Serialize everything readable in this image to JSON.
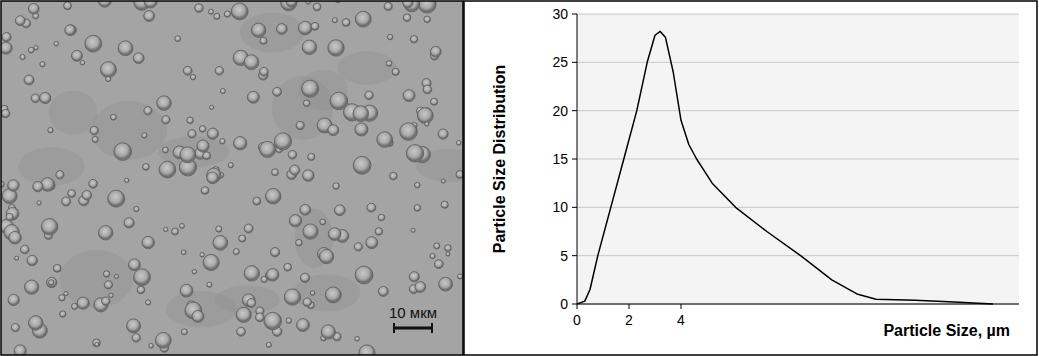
{
  "image_panel": {
    "scale_bar_label": "10 мкм"
  },
  "chart_data": {
    "type": "line",
    "y_label": "Particle Size Distribution",
    "x_label": "Particle Size, µm",
    "x": [
      0,
      0.3,
      0.5,
      0.8,
      1.3,
      1.8,
      2.3,
      2.7,
      3.0,
      3.2,
      3.4,
      3.7,
      4.0,
      4.3,
      4.6,
      5.2,
      6.1,
      7.3,
      8.6,
      9.8,
      10.8,
      11.5,
      13,
      14.5,
      16
    ],
    "values": [
      0,
      0.3,
      1.5,
      5,
      10,
      15,
      20,
      25,
      27.8,
      28.2,
      27.6,
      24,
      19,
      16.5,
      15,
      12.5,
      10,
      7.5,
      5,
      2.5,
      1,
      0.5,
      0.4,
      0.2,
      0
    ],
    "color": "#000000",
    "xlim": [
      0,
      17
    ],
    "xticks": [
      0,
      2,
      4
    ],
    "ylim": [
      0,
      30
    ],
    "yticks": [
      0,
      5,
      10,
      15,
      20,
      25,
      30
    ],
    "grid": true
  }
}
